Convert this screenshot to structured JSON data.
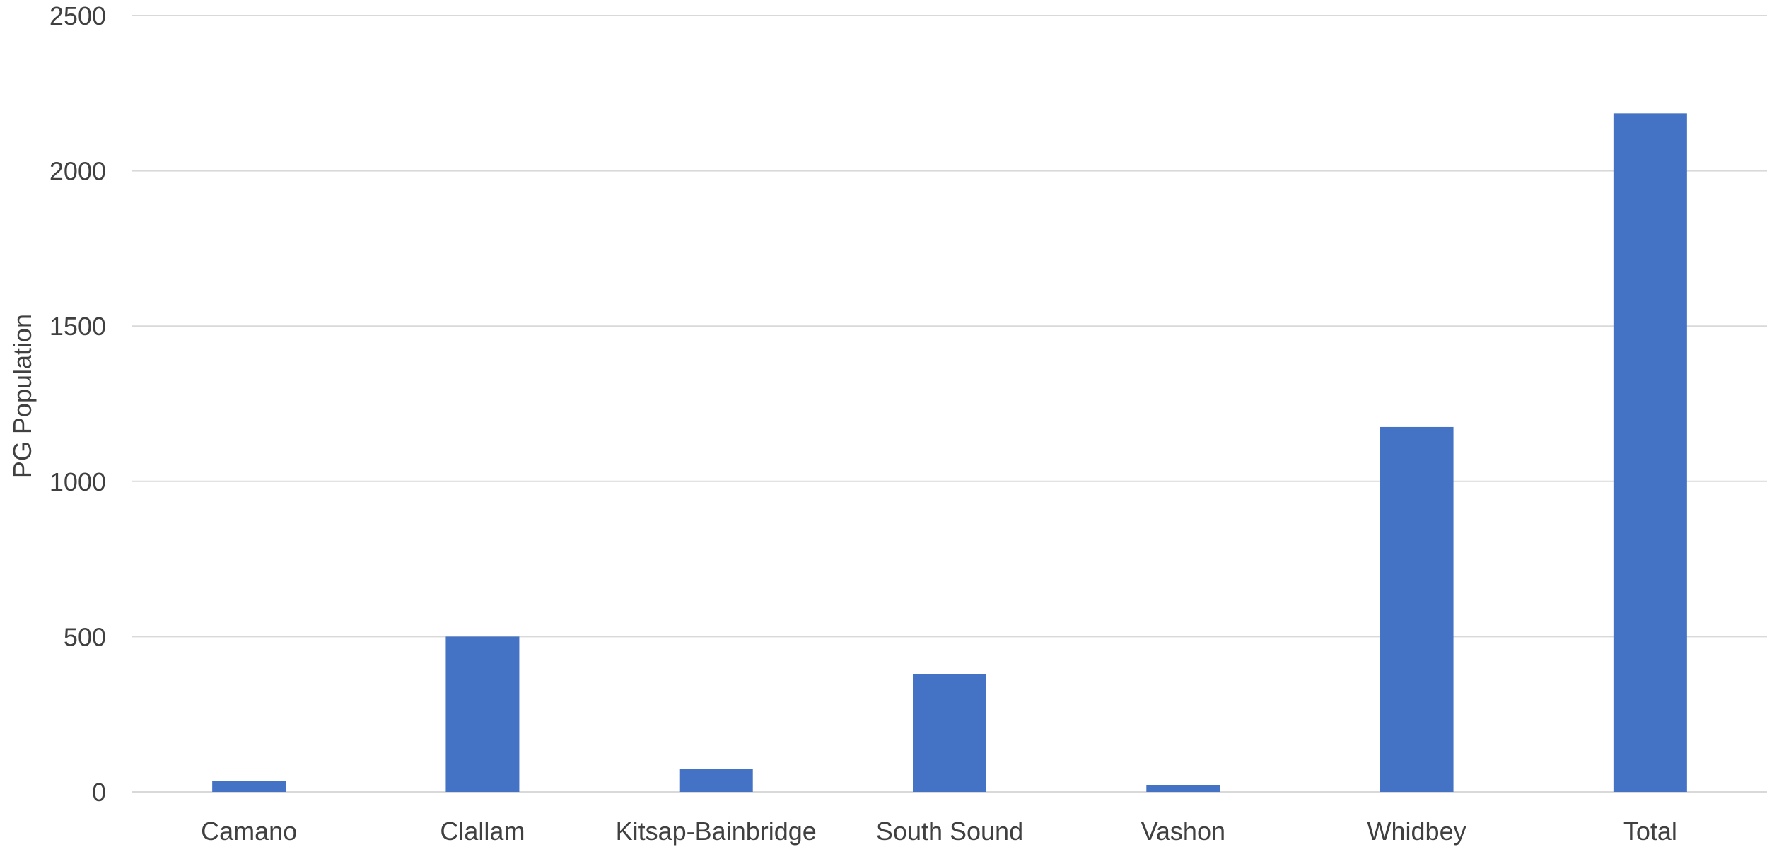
{
  "chart_data": {
    "type": "bar",
    "title": "",
    "xlabel": "",
    "ylabel": "PG Population",
    "categories": [
      "Camano",
      "Clallam",
      "Kitsap-Bainbridge",
      "South Sound",
      "Vashon",
      "Whidbey",
      "Total"
    ],
    "values": [
      35,
      500,
      75,
      380,
      22,
      1175,
      2185
    ],
    "ylim": [
      0,
      2500
    ],
    "yticks": [
      "0",
      "500",
      "1000",
      "1500",
      "2000",
      "2500"
    ],
    "grid": true,
    "legend": "none",
    "colors": {
      "bar": "#4472C4",
      "grid": "#D9D9D9",
      "text": "#404040"
    }
  }
}
